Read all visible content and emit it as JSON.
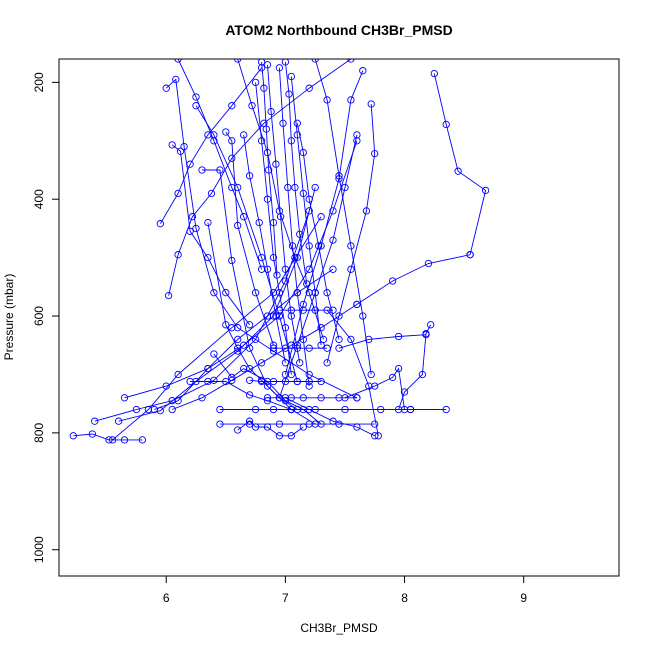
{
  "chart_data": {
    "type": "line",
    "title": "ATOM2 Northbound CH3Br_PMSD",
    "xlabel": "CH3Br_PMSD",
    "ylabel": "Pressure (mbar)",
    "xlim": [
      5.1,
      9.8
    ],
    "ylim": [
      1045,
      160
    ],
    "y_reversed": true,
    "x_ticks": [
      6,
      7,
      8,
      9
    ],
    "y_ticks": [
      200,
      400,
      600,
      800,
      1000
    ],
    "x_tick_labels": [
      "6",
      "7",
      "8",
      "9"
    ],
    "y_tick_labels": [
      "200",
      "400",
      "600",
      "800",
      "1000"
    ],
    "grid": false,
    "legend": "none",
    "series_color": "#0000ff",
    "series": [
      {
        "x": [
          5.22,
          5.38,
          5.52,
          5.65,
          5.8
        ],
        "y": [
          805,
          802,
          812,
          812,
          812
        ]
      },
      {
        "x": [
          5.55,
          5.85,
          6.1,
          6.55,
          6.9,
          7.3
        ],
        "y": [
          812,
          760,
          700,
          620,
          560,
          430
        ]
      },
      {
        "x": [
          5.4,
          5.75,
          6.05,
          6.4,
          6.75,
          7.0,
          7.2
        ],
        "y": [
          780,
          760,
          745,
          710,
          640,
          540,
          420
        ]
      },
      {
        "x": [
          5.6,
          5.95,
          6.25,
          6.6,
          6.9,
          7.1,
          7.25
        ],
        "y": [
          780,
          762,
          712,
          660,
          600,
          500,
          380
        ]
      },
      {
        "x": [
          5.65,
          6.0,
          6.35,
          6.65,
          6.95,
          7.2,
          7.4,
          7.6
        ],
        "y": [
          740,
          720,
          690,
          650,
          600,
          520,
          420,
          300
        ]
      },
      {
        "x": [
          5.95,
          6.1,
          6.2,
          6.35,
          6.55,
          6.8
        ],
        "y": [
          442,
          390,
          340,
          290,
          240,
          175
        ]
      },
      {
        "x": [
          6.0,
          6.08,
          6.15,
          6.25,
          6.4,
          6.6,
          6.9,
          7.2,
          7.6
        ],
        "y": [
          210,
          195,
          310,
          450,
          560,
          620,
          660,
          700,
          740
        ]
      },
      {
        "x": [
          6.05,
          6.12,
          6.2,
          6.35,
          6.5,
          6.7
        ],
        "y": [
          307,
          318,
          455,
          500,
          560,
          615
        ]
      },
      {
        "x": [
          6.02,
          6.1,
          6.22,
          6.38,
          6.55,
          6.82,
          7.2,
          7.55
        ],
        "y": [
          565,
          495,
          430,
          390,
          330,
          270,
          210,
          160
        ]
      },
      {
        "x": [
          6.3,
          6.45,
          6.55,
          6.7,
          6.85,
          7.05
        ],
        "y": [
          350,
          350,
          505,
          655,
          720,
          760
        ]
      },
      {
        "x": [
          6.35,
          6.5,
          6.6,
          6.7,
          6.8,
          6.95,
          7.1
        ],
        "y": [
          440,
          615,
          655,
          690,
          710,
          740,
          760
        ]
      },
      {
        "x": [
          6.5,
          6.55,
          6.6,
          6.75,
          6.9
        ],
        "y": [
          285,
          300,
          445,
          560,
          650
        ]
      },
      {
        "x": [
          6.4,
          6.55,
          6.65,
          6.85,
          7.0,
          7.15,
          7.3
        ],
        "y": [
          665,
          705,
          690,
          712,
          745,
          760,
          785
        ]
      },
      {
        "x": [
          6.2,
          6.35,
          6.5,
          6.7,
          6.85,
          7.05,
          7.25
        ],
        "y": [
          712,
          712,
          712,
          735,
          745,
          760,
          785
        ]
      },
      {
        "x": [
          6.45,
          6.75,
          6.9,
          7.05,
          7.25,
          7.5,
          7.8,
          8.05,
          8.35
        ],
        "y": [
          760,
          760,
          760,
          760,
          760,
          760,
          760,
          760,
          760
        ]
      },
      {
        "x": [
          6.45,
          6.7,
          6.95,
          7.2,
          7.45,
          7.75
        ],
        "y": [
          785,
          785,
          785,
          785,
          785,
          785
        ]
      },
      {
        "x": [
          6.85,
          6.95,
          7.05,
          7.15,
          7.3,
          7.45,
          7.6
        ],
        "y": [
          740,
          740,
          740,
          740,
          740,
          740,
          740
        ]
      },
      {
        "x": [
          6.7,
          6.8,
          6.9,
          7.0,
          7.1,
          7.2,
          7.3
        ],
        "y": [
          710,
          712,
          712,
          712,
          712,
          712,
          712
        ]
      },
      {
        "x": [
          6.9,
          7.0,
          7.1,
          7.2,
          7.35
        ],
        "y": [
          655,
          655,
          655,
          655,
          655
        ]
      },
      {
        "x": [
          6.95,
          7.05,
          7.15,
          7.25,
          7.4
        ],
        "y": [
          590,
          590,
          590,
          590,
          590
        ]
      },
      {
        "x": [
          6.75,
          6.8,
          6.85,
          6.9,
          6.95,
          7.0,
          7.05
        ],
        "y": [
          200,
          300,
          400,
          500,
          560,
          620,
          700
        ]
      },
      {
        "x": [
          6.85,
          6.88,
          6.92,
          6.96,
          7.0,
          7.05,
          7.12
        ],
        "y": [
          170,
          250,
          340,
          430,
          520,
          600,
          680
        ]
      },
      {
        "x": [
          6.95,
          6.98,
          7.02,
          7.06,
          7.1,
          7.15,
          7.2
        ],
        "y": [
          175,
          270,
          380,
          480,
          560,
          640,
          720
        ]
      },
      {
        "x": [
          7.05,
          7.1,
          7.15,
          7.2,
          7.25,
          7.3
        ],
        "y": [
          190,
          290,
          390,
          480,
          560,
          650
        ]
      },
      {
        "x": [
          7.1,
          7.15,
          7.2,
          7.28,
          7.35,
          7.45
        ],
        "y": [
          270,
          320,
          400,
          480,
          560,
          640
        ]
      },
      {
        "x": [
          7.25,
          7.35,
          7.45,
          7.55,
          7.65,
          7.72
        ],
        "y": [
          160,
          230,
          360,
          480,
          600,
          700
        ]
      },
      {
        "x": [
          7.72,
          7.75,
          7.68,
          7.55,
          7.45,
          7.35
        ],
        "y": [
          237,
          322,
          420,
          520,
          600,
          680
        ]
      },
      {
        "x": [
          7.65,
          7.55,
          7.45,
          7.3,
          7.15,
          7.0
        ],
        "y": [
          180,
          230,
          365,
          480,
          580,
          700
        ]
      },
      {
        "x": [
          7.6,
          7.5,
          7.4,
          7.25,
          7.1,
          6.95
        ],
        "y": [
          290,
          380,
          470,
          560,
          650,
          740
        ]
      },
      {
        "x": [
          8.25,
          8.35,
          8.45,
          8.68,
          8.55
        ],
        "y": [
          185,
          272,
          352,
          385,
          495
        ]
      },
      {
        "x": [
          8.22,
          8.18,
          8.15,
          8.0,
          7.95,
          8.05
        ],
        "y": [
          615,
          630,
          700,
          730,
          760,
          760
        ]
      },
      {
        "x": [
          7.6,
          7.9,
          8.2,
          8.55
        ],
        "y": [
          580,
          540,
          510,
          495
        ]
      },
      {
        "x": [
          7.45,
          7.7,
          7.95,
          8.18
        ],
        "y": [
          655,
          640,
          635,
          632
        ]
      },
      {
        "x": [
          7.5,
          7.75,
          7.9,
          7.95,
          8.0
        ],
        "y": [
          740,
          720,
          705,
          690,
          760
        ]
      },
      {
        "x": [
          7.35,
          7.55,
          7.7,
          7.78
        ],
        "y": [
          590,
          640,
          720,
          805
        ]
      },
      {
        "x": [
          6.6,
          6.7,
          6.75,
          6.85,
          6.95,
          7.05,
          7.15
        ],
        "y": [
          795,
          780,
          790,
          790,
          805,
          805,
          790
        ]
      },
      {
        "x": [
          7.0,
          7.2,
          7.4,
          7.6,
          7.75
        ],
        "y": [
          740,
          760,
          780,
          790,
          805
        ]
      },
      {
        "x": [
          6.25,
          6.4,
          6.6,
          6.8,
          6.95,
          7.1
        ],
        "y": [
          240,
          290,
          380,
          500,
          600,
          712
        ]
      },
      {
        "x": [
          6.6,
          6.72,
          6.85,
          6.95,
          7.08,
          7.2,
          7.32
        ],
        "y": [
          160,
          240,
          320,
          420,
          500,
          560,
          640
        ]
      },
      {
        "x": [
          5.9,
          6.1,
          6.35,
          6.6,
          6.85,
          7.1,
          7.4
        ],
        "y": [
          760,
          745,
          690,
          640,
          600,
          560,
          520
        ]
      },
      {
        "x": [
          6.05,
          6.3,
          6.55,
          6.8,
          7.05,
          7.3,
          7.6
        ],
        "y": [
          760,
          740,
          710,
          680,
          650,
          620,
          580
        ]
      },
      {
        "x": [
          6.8,
          6.82,
          6.84,
          6.86,
          6.9,
          6.93
        ],
        "y": [
          165,
          210,
          280,
          350,
          440,
          530
        ]
      },
      {
        "x": [
          7.0,
          7.03,
          7.05,
          7.08,
          7.12,
          7.18
        ],
        "y": [
          165,
          220,
          300,
          380,
          460,
          545
        ]
      },
      {
        "x": [
          6.65,
          6.7,
          6.78,
          6.85,
          6.92,
          7.0
        ],
        "y": [
          290,
          360,
          440,
          520,
          600,
          680
        ]
      },
      {
        "x": [
          6.1,
          6.25,
          6.4,
          6.55,
          6.65,
          6.8
        ],
        "y": [
          160,
          225,
          300,
          380,
          430,
          520
        ]
      }
    ]
  }
}
